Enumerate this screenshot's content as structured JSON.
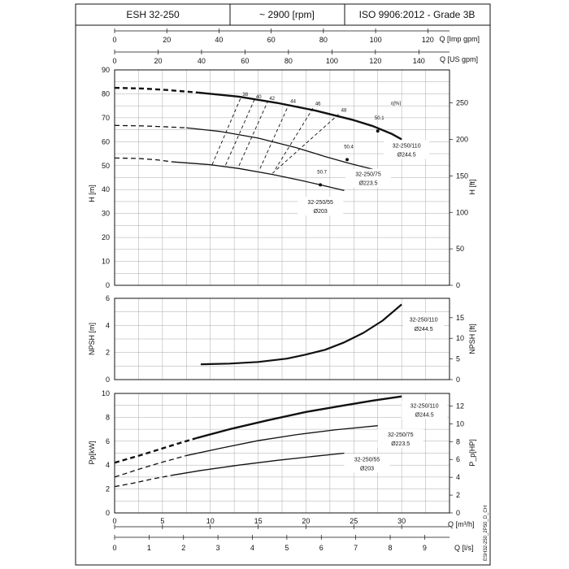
{
  "header": {
    "model": "ESH 32-250",
    "speed": "~ 2900 [rpm]",
    "standard": "ISO 9906:2012 - Grade 3B"
  },
  "side_code": "ESH32-250_2P50_D_CH",
  "chart_data": [
    {
      "type": "line",
      "name": "head",
      "xlabel": "Q [m³/h]",
      "ylabel": "H [m]",
      "ylabel_right": "H [ft]",
      "xlim": [
        0,
        35
      ],
      "ylim": [
        0,
        90
      ],
      "yticks": [
        0,
        10,
        20,
        30,
        40,
        50,
        60,
        70,
        80,
        90
      ],
      "yticks_right": [
        0,
        50,
        100,
        150,
        200,
        250
      ],
      "top_axes": [
        {
          "label": "Q [Imp gpm]",
          "ticks": [
            0,
            20,
            40,
            60,
            80,
            100,
            120
          ]
        },
        {
          "label": "Q [US gpm]",
          "ticks": [
            0,
            20,
            40,
            60,
            80,
            100,
            120,
            140
          ]
        }
      ],
      "efficiency_label": "η[%]",
      "efficiency_lines": [
        {
          "label": "38",
          "x1": 10.2,
          "y1": 50.5,
          "x2": 13.2,
          "y2": 78.5
        },
        {
          "label": "40",
          "x1": 11.6,
          "y1": 50.3,
          "x2": 14.6,
          "y2": 77.5
        },
        {
          "label": "42",
          "x1": 13.0,
          "y1": 50.0,
          "x2": 16.0,
          "y2": 76.8
        },
        {
          "label": "44",
          "x1": 15.2,
          "y1": 48.8,
          "x2": 18.2,
          "y2": 75.5
        },
        {
          "label": "46",
          "x1": 16.8,
          "y1": 48.5,
          "x2": 20.8,
          "y2": 74.5
        },
        {
          "label": "48",
          "x1": 16.5,
          "y1": 46.8,
          "x2": 23.5,
          "y2": 71.8
        }
      ],
      "series": [
        {
          "name": "32-250/110",
          "diameter": "Ø244.5",
          "bold": true,
          "x": [
            8.8,
            13,
            17,
            21,
            25,
            27,
            29,
            30
          ],
          "y": [
            80.5,
            78.8,
            76.2,
            73,
            69,
            66.5,
            63.2,
            61
          ],
          "dashed_x": [
            0,
            3,
            5.5,
            8.8
          ],
          "dashed_y": [
            82.5,
            82.2,
            81.6,
            80.5
          ],
          "bep": {
            "x": 27.5,
            "y": 64.5,
            "label": "50.1"
          }
        },
        {
          "name": "32-250/75",
          "diameter": "Ø223.5",
          "bold": false,
          "x": [
            7.5,
            11,
            15,
            19,
            22,
            24.5,
            27
          ],
          "y": [
            65.8,
            64.3,
            61.5,
            57.5,
            53.8,
            51,
            48.5
          ],
          "dashed_x": [
            0,
            3,
            5.5,
            7.5
          ],
          "dashed_y": [
            66.8,
            66.6,
            66.2,
            65.8
          ],
          "bep": {
            "x": 24.3,
            "y": 52.5,
            "label": "50.4"
          }
        },
        {
          "name": "32-250/55",
          "diameter": "Ø203",
          "bold": false,
          "x": [
            6,
            10,
            13,
            16.5,
            19.5,
            21.5,
            24
          ],
          "y": [
            51.6,
            50.4,
            48.8,
            46.3,
            43.8,
            42,
            39.6
          ],
          "dashed_x": [
            0,
            2.5,
            4.5,
            6
          ],
          "dashed_y": [
            53.2,
            53,
            52.4,
            51.6
          ],
          "bep": {
            "x": 21.5,
            "y": 42,
            "label": "50.7"
          }
        }
      ]
    },
    {
      "type": "line",
      "name": "npsh",
      "xlabel": "Q [m³/h]",
      "ylabel": "NPSH [m]",
      "ylabel_right": "NPSH [ft]",
      "xlim": [
        0,
        35
      ],
      "ylim": [
        0,
        6
      ],
      "yticks": [
        0,
        2,
        4,
        6
      ],
      "yticks_right": [
        0,
        5,
        10,
        15
      ],
      "series": [
        {
          "name": "32-250/110",
          "diameter": "Ø244.5",
          "x": [
            9,
            12,
            15,
            18,
            20,
            22,
            24,
            26,
            28,
            30
          ],
          "y": [
            1.13,
            1.18,
            1.3,
            1.55,
            1.85,
            2.2,
            2.75,
            3.45,
            4.35,
            5.55
          ]
        }
      ]
    },
    {
      "type": "line",
      "name": "power",
      "xlabel": "Q [m³/h]",
      "xlabel2": "Q [l/s]",
      "ylabel": "Pp[kW]",
      "ylabel_right": "P_p[HP]",
      "xlim": [
        0,
        35
      ],
      "ylim": [
        0,
        10
      ],
      "yticks": [
        0,
        2,
        4,
        6,
        8,
        10
      ],
      "yticks_right": [
        0,
        2,
        4,
        6,
        8,
        10,
        12
      ],
      "xticks": [
        0,
        5,
        10,
        15,
        20,
        25,
        30
      ],
      "xticks_ls": [
        0,
        1,
        2,
        3,
        4,
        5,
        6,
        7,
        8,
        9
      ],
      "series": [
        {
          "name": "32-250/110",
          "diameter": "Ø244.5",
          "bold": true,
          "x": [
            8.5,
            12,
            16,
            20,
            24,
            27,
            30
          ],
          "y": [
            6.25,
            7.0,
            7.75,
            8.45,
            9.0,
            9.4,
            9.75
          ],
          "dashed_x": [
            0,
            3,
            6,
            8.5
          ],
          "dashed_y": [
            4.2,
            4.9,
            5.65,
            6.25
          ]
        },
        {
          "name": "32-250/75",
          "diameter": "Ø223.5",
          "bold": false,
          "x": [
            7.5,
            11,
            15,
            19,
            23,
            27.5
          ],
          "y": [
            4.8,
            5.4,
            6.05,
            6.55,
            6.95,
            7.3
          ],
          "dashed_x": [
            0,
            2.5,
            5,
            7.5
          ],
          "dashed_y": [
            3.0,
            3.65,
            4.25,
            4.8
          ]
        },
        {
          "name": "32-250/55",
          "diameter": "Ø203",
          "bold": false,
          "x": [
            6,
            9,
            13,
            17,
            21,
            24
          ],
          "y": [
            3.15,
            3.55,
            4.0,
            4.4,
            4.75,
            5.0
          ],
          "dashed_x": [
            0,
            2,
            4,
            6
          ],
          "dashed_y": [
            2.2,
            2.5,
            2.85,
            3.15
          ]
        }
      ]
    }
  ]
}
